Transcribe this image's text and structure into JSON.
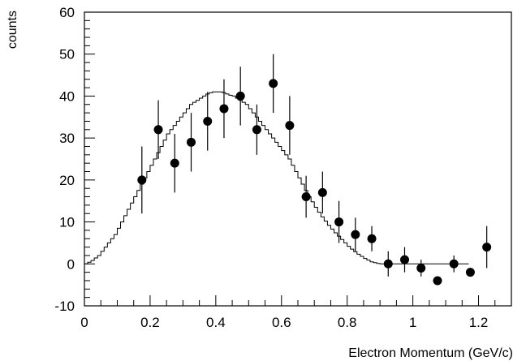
{
  "chart_data": {
    "type": "scatter",
    "xlabel": "Electron Momentum (GeV/c)",
    "ylabel": "counts",
    "xlim": [
      0,
      1.3
    ],
    "ylim": [
      -10,
      60
    ],
    "grid": false,
    "legend": "none",
    "x_ticks": [
      "0",
      "0.2",
      "0.4",
      "0.6",
      "0.8",
      "1",
      "1.2"
    ],
    "y_ticks": [
      "-10",
      "0",
      "10",
      "20",
      "30",
      "40",
      "50",
      "60"
    ],
    "series": [
      {
        "kind": "points-with-errors",
        "x": [
          0.175,
          0.225,
          0.275,
          0.325,
          0.375,
          0.425,
          0.475,
          0.525,
          0.575,
          0.625,
          0.675,
          0.725,
          0.775,
          0.825,
          0.875,
          0.925,
          0.975,
          1.025,
          1.075,
          1.125,
          1.175,
          1.225
        ],
        "y": [
          20,
          32,
          24,
          29,
          34,
          37,
          40,
          32,
          43,
          33,
          16,
          17,
          10,
          7,
          6,
          0,
          1,
          -1,
          -4,
          0,
          -2,
          4
        ],
        "err": [
          8,
          7,
          7,
          7,
          7,
          7,
          7,
          6,
          7,
          7,
          5,
          5,
          5,
          4,
          3,
          3,
          3,
          2,
          1,
          2,
          1,
          5
        ]
      },
      {
        "kind": "step-histogram",
        "bin_width": 0.01,
        "x_start": 0.0,
        "values": [
          0,
          0.4,
          0.8,
          1.4,
          2,
          3,
          4,
          5,
          6,
          7,
          8.5,
          10,
          11.5,
          13,
          14.5,
          16,
          17.5,
          19,
          20.5,
          22,
          23.5,
          25,
          26.5,
          28,
          29.5,
          31,
          32,
          33,
          34,
          35,
          36,
          37,
          38,
          38.5,
          39,
          39.5,
          40,
          40.5,
          40.8,
          41,
          41,
          41,
          40.8,
          40.5,
          40.2,
          40,
          39.5,
          39,
          38.5,
          38,
          37,
          36,
          35,
          34,
          33,
          32,
          31,
          30,
          29,
          28,
          27,
          26,
          25,
          23.5,
          22,
          20.5,
          19,
          17.5,
          16,
          14.8,
          13.5,
          12.3,
          11.2,
          10.2,
          9.2,
          8.3,
          7.4,
          6.6,
          5.8,
          5,
          4.2,
          3.5,
          2.9,
          2.3,
          1.8,
          1.3,
          0.9,
          0.5,
          0.3,
          0.1,
          0,
          0,
          0,
          0,
          0,
          0,
          0,
          0,
          0,
          0,
          0,
          0,
          0,
          0,
          0,
          0,
          0,
          0,
          0,
          0,
          0,
          0,
          0,
          0,
          0,
          0,
          0
        ]
      }
    ]
  }
}
